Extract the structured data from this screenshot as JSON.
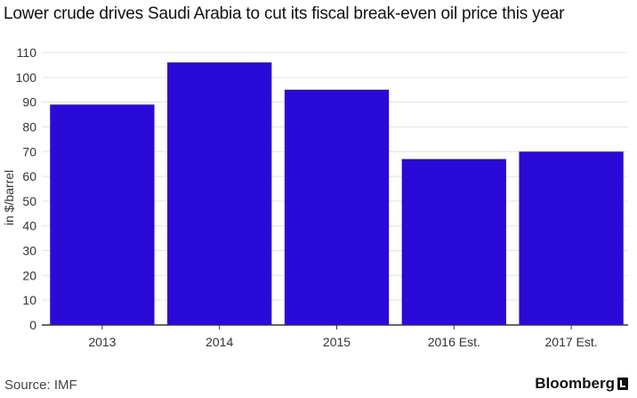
{
  "chart_data": {
    "type": "bar",
    "title": "Lower crude drives Saudi Arabia to cut its fiscal break-even oil price this year",
    "xlabel": "",
    "ylabel": "in $/barrel",
    "categories": [
      "2013",
      "2014",
      "2015",
      "2016 Est.",
      "2017 Est."
    ],
    "values": [
      89,
      106,
      95,
      67,
      70
    ],
    "ylim": [
      0,
      110
    ],
    "yticks": [
      0,
      10,
      20,
      30,
      40,
      50,
      60,
      70,
      80,
      90,
      100,
      110
    ],
    "grid": true,
    "bar_color": "#2a0ad6"
  },
  "footer": {
    "source": "Source: IMF",
    "brand": "Bloomberg"
  },
  "colors": {
    "grid": "#e3e3e3",
    "axis": "#333333"
  }
}
